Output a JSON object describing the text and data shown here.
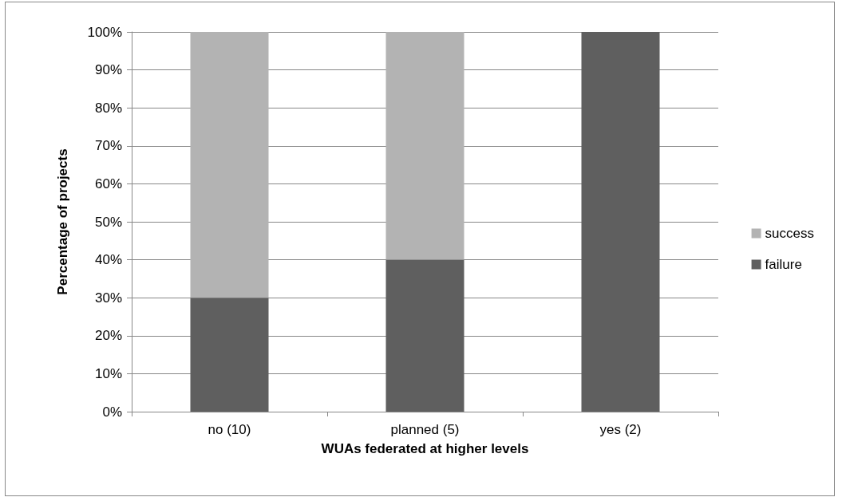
{
  "chart_data": {
    "type": "bar",
    "stacked": true,
    "xlabel": "WUAs federated at higher levels",
    "ylabel": "Percentage of projects",
    "categories": [
      "no (10)",
      "planned (5)",
      "yes (2)"
    ],
    "series": [
      {
        "name": "failure",
        "color": "#5f5f5f",
        "values": [
          30,
          40,
          100
        ]
      },
      {
        "name": "success",
        "color": "#b3b3b3",
        "values": [
          70,
          60,
          0
        ]
      }
    ],
    "ylim": [
      0,
      100
    ],
    "yticks": [
      {
        "value": 0,
        "label": "0%"
      },
      {
        "value": 10,
        "label": "10%"
      },
      {
        "value": 20,
        "label": "20%"
      },
      {
        "value": 30,
        "label": "30%"
      },
      {
        "value": 40,
        "label": "40%"
      },
      {
        "value": 50,
        "label": "50%"
      },
      {
        "value": 60,
        "label": "60%"
      },
      {
        "value": 70,
        "label": "70%"
      },
      {
        "value": 80,
        "label": "80%"
      },
      {
        "value": 90,
        "label": "90%"
      },
      {
        "value": 100,
        "label": "100%"
      }
    ],
    "grid": "y",
    "legend": "right"
  }
}
